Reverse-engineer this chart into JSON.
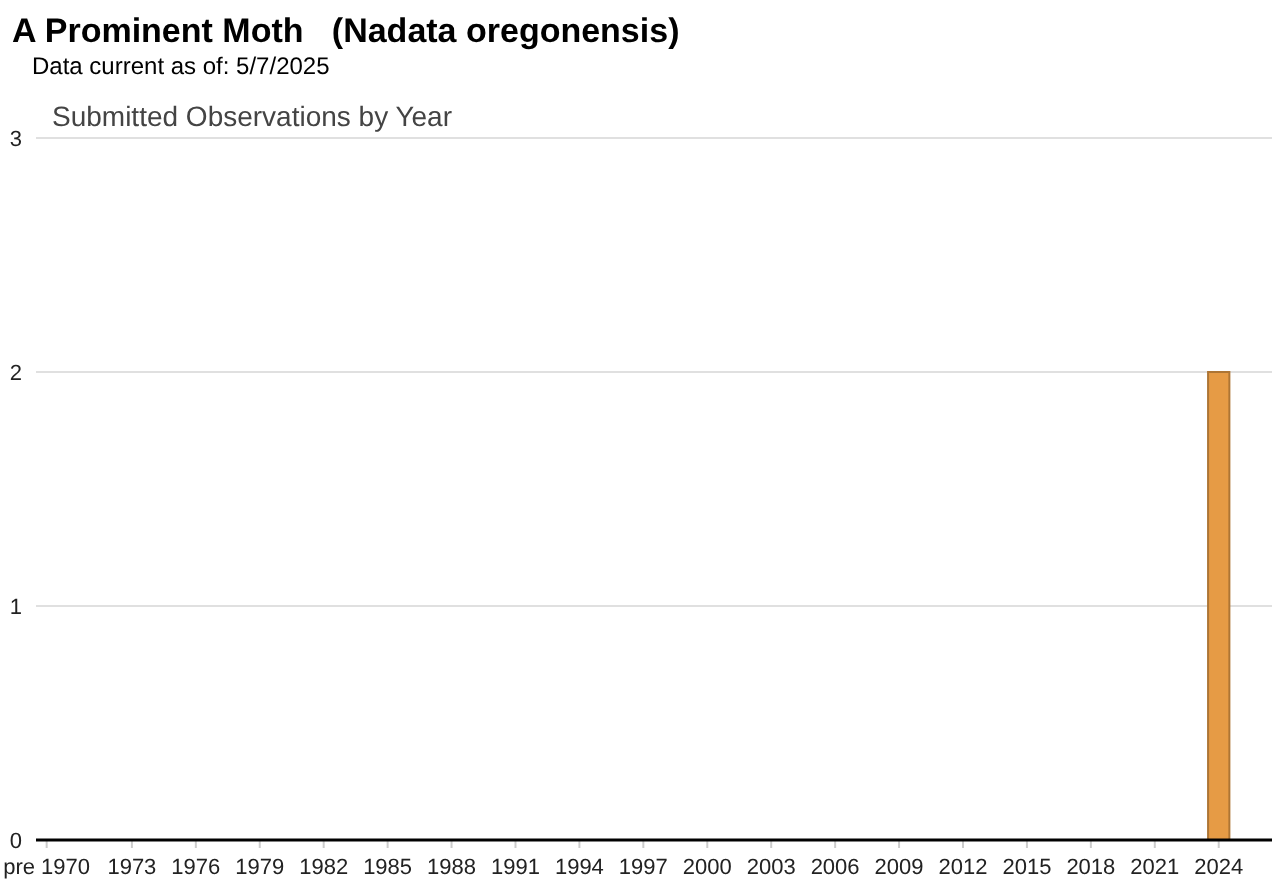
{
  "chart_data": {
    "type": "bar",
    "title": "A Prominent Moth   (Nadata oregonensis)",
    "subtitle": "Submitted Observations by Year",
    "annotations": [
      "Data current as of: 5/7/2025"
    ],
    "categories": [
      "pre 1970",
      null,
      null,
      null,
      "1973",
      null,
      null,
      "1976",
      null,
      null,
      "1979",
      null,
      null,
      "1982",
      null,
      null,
      "1985",
      null,
      null,
      "1988",
      null,
      null,
      "1991",
      null,
      null,
      "1994",
      null,
      null,
      "1997",
      null,
      null,
      "2000",
      null,
      null,
      "2003",
      null,
      null,
      "2006",
      null,
      null,
      "2009",
      null,
      null,
      "2012",
      null,
      null,
      "2015",
      null,
      null,
      "2018",
      null,
      null,
      "2021",
      null,
      null,
      "2024",
      null,
      null
    ],
    "values": [
      0,
      0,
      0,
      0,
      0,
      0,
      0,
      0,
      0,
      0,
      0,
      0,
      0,
      0,
      0,
      0,
      0,
      0,
      0,
      0,
      0,
      0,
      0,
      0,
      0,
      0,
      0,
      0,
      0,
      0,
      0,
      0,
      0,
      0,
      0,
      0,
      0,
      0,
      0,
      0,
      0,
      0,
      0,
      0,
      0,
      0,
      0,
      0,
      0,
      0,
      0,
      0,
      0,
      0,
      0,
      2,
      0,
      0
    ],
    "color": "#e69b45",
    "ylim": [
      0,
      3
    ],
    "yticks": [
      0,
      1,
      2,
      3
    ],
    "grid": "y"
  }
}
